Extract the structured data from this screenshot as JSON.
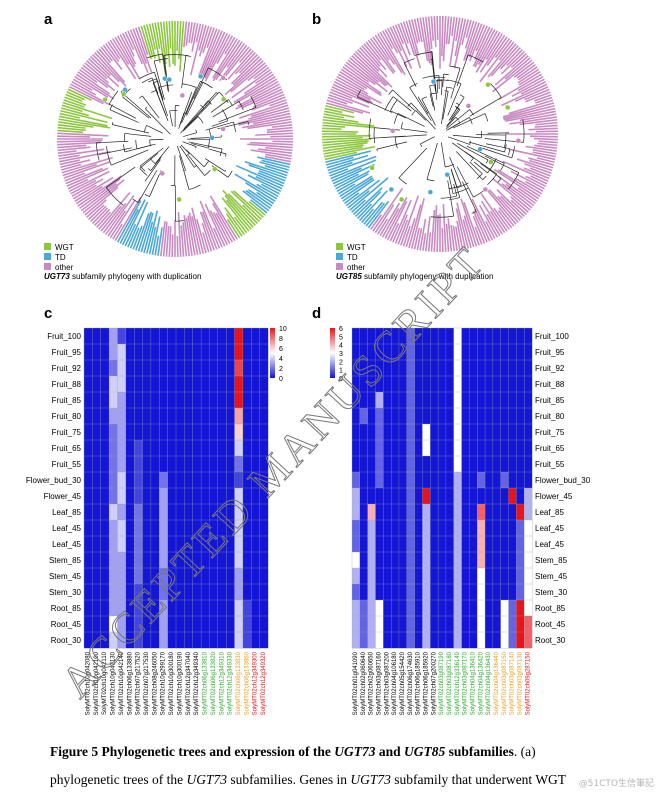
{
  "panels": {
    "a": {
      "label": "a",
      "legend_wgt": "WGT",
      "legend_td": "TD",
      "legend_other": "other",
      "subtitle_gene": "UGT73",
      "subtitle_rest": " subfamily phylogeny with duplication"
    },
    "b": {
      "label": "b",
      "legend_wgt": "WGT",
      "legend_td": "TD",
      "legend_other": "other",
      "subtitle_gene": "UGT85",
      "subtitle_rest": " subfamily phylogeny with duplication"
    },
    "c": {
      "label": "c",
      "scale_ticks": [
        "10",
        "8",
        "6",
        "4",
        "2",
        "0"
      ]
    },
    "d": {
      "label": "d",
      "scale_ticks": [
        "6",
        "5",
        "4",
        "3",
        "2",
        "1",
        "0"
      ]
    }
  },
  "colors": {
    "wgt": "#8dc63f",
    "td": "#4aa8d8",
    "other": "#c98ac2",
    "heat_low": "#1515d6",
    "heat_high": "#e8141b"
  },
  "row_labels": [
    "Fruit_100",
    "Fruit_95",
    "Fruit_92",
    "Fruit_88",
    "Fruit_85",
    "Fruit_80",
    "Fruit_75",
    "Fruit_65",
    "Fruit_55",
    "Flower_bud_30",
    "Flower_45",
    "Leaf_85",
    "Leaf_45",
    "Leaf_45",
    "Stem_85",
    "Stem_45",
    "Stem_30",
    "Root_85",
    "Root_45",
    "Root_30"
  ],
  "c_columns": [
    {
      "name": "SolyMT02ch10g042080",
      "color": "#000"
    },
    {
      "name": "SolyMT02ch10g042100",
      "color": "#000"
    },
    {
      "name": "SolyMT02ch10g042110",
      "color": "#000"
    },
    {
      "name": "SolyMT02ch10g042130",
      "color": "#000"
    },
    {
      "name": "SolyMT02ch10g042140",
      "color": "#000"
    },
    {
      "name": "SolyMT02ch06g133880",
      "color": "#000"
    },
    {
      "name": "SolyMT02ch07g217520",
      "color": "#000"
    },
    {
      "name": "SolyMT02ch07g217530",
      "color": "#000"
    },
    {
      "name": "SolyMT02ch08g246050",
      "color": "#000"
    },
    {
      "name": "SolyMT02ch10g299170",
      "color": "#000"
    },
    {
      "name": "SolyMT02ch10g300180",
      "color": "#000"
    },
    {
      "name": "SolyMT02ch10g300190",
      "color": "#000"
    },
    {
      "name": "SolyMT02ch12g347040",
      "color": "#000"
    },
    {
      "name": "SolyMT02ch12g349340",
      "color": "#000"
    },
    {
      "name": "SolyMT02ch06g133810",
      "color": "#2eaa2e"
    },
    {
      "name": "SolyMT02ch06g133820",
      "color": "#2eaa2e"
    },
    {
      "name": "SolyMT02ch12g349310",
      "color": "#2eaa2e"
    },
    {
      "name": "SolyMT02ch12g349330",
      "color": "#2eaa2e"
    },
    {
      "name": "SolyMT02ch06g133830",
      "color": "#f0a020"
    },
    {
      "name": "SolyMT02ch06g133860",
      "color": "#f0a020"
    },
    {
      "name": "SolyMT02ch12g349300",
      "color": "#e8141b"
    },
    {
      "name": "SolyMT02ch12g349320",
      "color": "#e8141b"
    }
  ],
  "d_columns": [
    {
      "name": "SolyMT02ch01g041090",
      "color": "#000"
    },
    {
      "name": "SolyMT02ch02g060640",
      "color": "#000"
    },
    {
      "name": "SolyMT02ch02g060650",
      "color": "#000"
    },
    {
      "name": "SolyMT02ch03g087160",
      "color": "#000"
    },
    {
      "name": "SolyMT02ch03g087200",
      "color": "#000"
    },
    {
      "name": "SolyMT02ch04g106180",
      "color": "#000"
    },
    {
      "name": "SolyMT02ch05g154420",
      "color": "#000"
    },
    {
      "name": "SolyMT02ch06g174630",
      "color": "#000"
    },
    {
      "name": "SolyMT02ch06g185910",
      "color": "#000"
    },
    {
      "name": "SolyMT02ch06g185920",
      "color": "#000"
    },
    {
      "name": "SolyMT02ch07g200270",
      "color": "#000"
    },
    {
      "name": "SolyMT02ch03g087190",
      "color": "#2eaa2e"
    },
    {
      "name": "SolyMT02ch03g087180",
      "color": "#2eaa2e"
    },
    {
      "name": "SolyMT02ch12g336140",
      "color": "#2eaa2e"
    },
    {
      "name": "SolyMT02ch03g087170",
      "color": "#2eaa2e"
    },
    {
      "name": "SolyMT02ch04g136410",
      "color": "#2eaa2e"
    },
    {
      "name": "SolyMT02ch04g136420",
      "color": "#2eaa2e"
    },
    {
      "name": "SolyMT02ch04g136430",
      "color": "#2eaa2e"
    },
    {
      "name": "SolyMT02ch04g136440",
      "color": "#f0a020"
    },
    {
      "name": "SolyMT02ch03g087150",
      "color": "#f0a020"
    },
    {
      "name": "SolyMT02ch03g087140",
      "color": "#f0a020"
    },
    {
      "name": "SolyMT02ch03g087130",
      "color": "#f0a020"
    },
    {
      "name": "SolyMT02ch09g287150",
      "color": "#e8141b"
    }
  ],
  "c_values": [
    [
      0,
      0,
      0,
      3,
      1,
      0,
      0,
      0,
      0,
      0,
      0,
      0,
      0,
      0,
      0,
      0,
      0,
      0,
      10,
      0,
      0,
      0
    ],
    [
      0,
      0,
      0,
      3,
      4,
      0,
      0,
      0,
      0,
      0,
      0,
      0,
      0,
      0,
      0,
      0,
      0,
      0,
      10,
      0,
      0,
      0
    ],
    [
      0,
      0,
      0,
      2,
      4,
      0,
      0,
      0,
      0,
      0,
      0,
      0,
      0,
      0,
      0,
      0,
      0,
      0,
      9,
      0,
      0,
      0
    ],
    [
      0,
      0,
      0,
      4,
      4,
      0,
      0,
      0,
      0,
      0,
      0,
      0,
      0,
      0,
      0,
      0,
      0,
      0,
      11,
      0,
      0,
      0
    ],
    [
      0,
      0,
      0,
      4,
      3,
      0,
      0,
      0,
      0,
      0,
      0,
      0,
      0,
      0,
      0,
      0,
      0,
      0,
      11,
      0,
      0,
      0
    ],
    [
      0,
      0,
      0,
      3,
      3,
      0,
      0,
      0,
      0,
      0,
      0,
      0,
      0,
      0,
      0,
      0,
      0,
      0,
      7,
      0,
      0,
      0
    ],
    [
      0,
      0,
      0,
      2,
      3,
      0,
      0,
      0,
      0,
      0,
      0,
      0,
      0,
      0,
      0,
      0,
      0,
      0,
      6,
      0,
      0,
      0
    ],
    [
      0,
      0,
      0,
      2,
      3,
      0,
      1,
      0,
      0,
      0,
      0,
      0,
      0,
      0,
      0,
      0,
      0,
      0,
      4,
      0,
      0,
      0
    ],
    [
      0,
      0,
      0,
      2,
      3,
      0,
      1,
      0,
      0,
      0,
      0,
      0,
      0,
      0,
      0,
      0,
      0,
      0,
      2,
      0,
      0,
      0
    ],
    [
      0,
      0,
      0,
      2,
      4,
      0,
      1,
      0,
      0,
      2,
      0,
      0,
      0,
      0,
      0,
      0,
      0,
      0,
      1,
      0,
      0,
      0
    ],
    [
      0,
      0,
      0,
      2,
      4,
      0,
      1,
      0,
      0,
      3,
      0,
      0,
      0,
      0,
      0,
      0,
      0,
      0,
      4,
      0,
      0,
      0
    ],
    [
      0,
      0,
      0,
      4,
      3,
      0,
      2,
      0,
      0,
      3,
      0,
      0,
      0,
      0,
      0,
      0,
      0,
      0,
      4,
      0,
      0,
      0
    ],
    [
      0,
      0,
      0,
      3,
      4,
      0,
      2,
      0,
      0,
      3,
      0,
      0,
      0,
      0,
      0,
      0,
      0,
      0,
      4,
      0,
      0,
      0
    ],
    [
      0,
      0,
      0,
      3,
      4,
      0,
      2,
      0,
      0,
      3,
      0,
      0,
      0,
      0,
      0,
      0,
      0,
      0,
      4,
      0,
      0,
      0
    ],
    [
      0,
      0,
      0,
      3,
      3,
      0,
      2,
      0,
      0,
      3,
      0,
      0,
      0,
      0,
      0,
      0,
      0,
      0,
      4,
      0,
      0,
      0
    ],
    [
      0,
      0,
      0,
      3,
      3,
      0,
      2,
      0,
      0,
      2,
      0,
      0,
      0,
      0,
      0,
      0,
      0,
      0,
      3,
      0,
      0,
      0
    ],
    [
      0,
      0,
      0,
      3,
      3,
      0,
      1,
      0,
      0,
      2,
      0,
      0,
      0,
      0,
      0,
      0,
      0,
      0,
      3,
      0,
      0,
      0
    ],
    [
      0,
      0,
      0,
      3,
      3,
      0,
      1,
      0,
      0,
      3,
      0,
      0,
      0,
      0,
      0,
      0,
      0,
      0,
      4,
      1,
      0,
      0
    ],
    [
      0,
      0,
      0,
      5,
      3,
      0,
      1,
      0,
      0,
      3,
      0,
      0,
      0,
      0,
      0,
      0,
      0,
      0,
      4,
      1,
      0,
      0
    ],
    [
      0,
      0,
      0,
      4,
      3,
      0,
      1,
      0,
      0,
      3,
      0,
      0,
      0,
      0,
      0,
      0,
      0,
      0,
      4,
      1,
      0,
      0
    ]
  ],
  "d_values": [
    [
      0,
      0,
      0,
      0,
      0,
      0,
      0,
      1,
      0,
      0,
      0,
      0,
      0,
      3,
      0,
      0,
      0,
      0,
      0,
      0,
      0,
      0,
      0
    ],
    [
      0,
      0,
      0,
      0,
      0,
      0,
      0,
      1,
      0,
      0,
      0,
      0,
      0,
      3,
      0,
      0,
      0,
      0,
      0,
      0,
      0,
      0,
      0
    ],
    [
      0,
      0,
      0,
      0,
      0,
      0,
      0,
      1,
      0,
      0,
      0,
      0,
      0,
      3,
      0,
      0,
      0,
      0,
      0,
      0,
      0,
      0,
      0
    ],
    [
      0,
      0,
      0,
      0,
      0,
      0,
      0,
      1,
      0,
      0,
      0,
      0,
      0,
      3,
      0,
      0,
      0,
      0,
      0,
      0,
      0,
      0,
      0
    ],
    [
      0,
      0,
      0,
      2,
      0,
      0,
      0,
      1,
      0,
      0,
      0,
      0,
      0,
      3,
      0,
      0,
      0,
      0,
      0,
      0,
      0,
      0,
      0
    ],
    [
      0,
      1,
      0,
      1,
      0,
      0,
      0,
      1,
      0,
      0,
      0,
      0,
      0,
      3,
      0,
      0,
      0,
      0,
      0,
      0,
      0,
      0,
      0
    ],
    [
      0,
      0,
      0,
      1,
      0,
      0,
      0,
      1,
      0,
      3,
      0,
      0,
      0,
      3,
      0,
      0,
      0,
      0,
      0,
      0,
      0,
      0,
      0
    ],
    [
      0,
      0,
      0,
      1,
      0,
      0,
      0,
      1,
      0,
      3,
      0,
      0,
      0,
      3,
      0,
      0,
      0,
      0,
      0,
      0,
      0,
      0,
      0
    ],
    [
      0,
      0,
      0,
      1,
      0,
      0,
      0,
      1,
      0,
      0,
      0,
      0,
      0,
      3,
      0,
      0,
      0,
      0,
      0,
      0,
      0,
      0,
      0
    ],
    [
      1,
      0,
      0,
      1,
      0,
      0,
      0,
      1,
      0,
      0,
      0,
      0,
      0,
      2,
      0,
      0,
      1,
      0,
      0,
      1,
      0,
      0,
      0
    ],
    [
      2,
      0,
      0,
      0,
      0,
      0,
      0,
      1,
      0,
      6,
      0,
      0,
      0,
      2,
      0,
      0,
      0,
      0,
      0,
      0,
      7,
      0,
      2
    ],
    [
      2,
      0,
      4,
      0,
      0,
      0,
      0,
      1,
      0,
      2,
      0,
      0,
      0,
      2,
      0,
      0,
      5,
      0,
      0,
      0,
      0,
      6,
      2
    ],
    [
      1,
      0,
      2,
      0,
      0,
      0,
      0,
      1,
      0,
      2,
      0,
      0,
      0,
      2,
      0,
      0,
      4,
      0,
      0,
      0,
      0,
      1,
      3
    ],
    [
      1,
      0,
      2,
      0,
      0,
      0,
      0,
      1,
      0,
      2,
      0,
      0,
      0,
      2,
      0,
      0,
      4,
      0,
      0,
      0,
      0,
      1,
      3
    ],
    [
      3,
      0,
      2,
      0,
      0,
      0,
      0,
      1,
      0,
      2,
      0,
      0,
      0,
      2,
      0,
      0,
      4,
      0,
      0,
      0,
      0,
      1,
      3
    ],
    [
      2,
      0,
      2,
      0,
      0,
      0,
      0,
      1,
      0,
      2,
      0,
      0,
      0,
      2,
      0,
      0,
      3,
      0,
      0,
      0,
      0,
      1,
      3
    ],
    [
      1,
      0,
      2,
      0,
      0,
      0,
      0,
      1,
      0,
      2,
      0,
      0,
      0,
      2,
      0,
      0,
      3,
      0,
      0,
      0,
      0,
      1,
      3
    ],
    [
      2,
      1,
      2,
      3,
      0,
      0,
      0,
      1,
      0,
      2,
      0,
      0,
      0,
      2,
      0,
      0,
      3,
      0,
      0,
      3,
      1,
      6,
      3
    ],
    [
      2,
      1,
      2,
      3,
      0,
      0,
      0,
      1,
      0,
      2,
      0,
      0,
      0,
      2,
      0,
      0,
      3,
      0,
      0,
      3,
      1,
      6,
      5
    ],
    [
      2,
      1,
      2,
      3,
      0,
      0,
      0,
      1,
      0,
      2,
      0,
      0,
      0,
      2,
      0,
      0,
      3,
      0,
      0,
      3,
      1,
      6,
      5
    ]
  ],
  "watermark": "ACCEPTED MANUSCRIPT",
  "caption": {
    "bold_prefix": "Figure 5 Phylogenetic trees and expression of the ",
    "gene1": "UGT73",
    "and": " and ",
    "gene2": "UGT85",
    "bold_suffix": " subfamilies",
    "rest1": ". (a)",
    "line2_a": "phylogenetic trees of the ",
    "line2_gene": "UGT73",
    "line2_b": " subfamilies. Genes in ",
    "line2_gene2": "UGT73",
    "line2_c": " subfamily that underwent WGT"
  },
  "credit": "@51CTO生信筆記"
}
